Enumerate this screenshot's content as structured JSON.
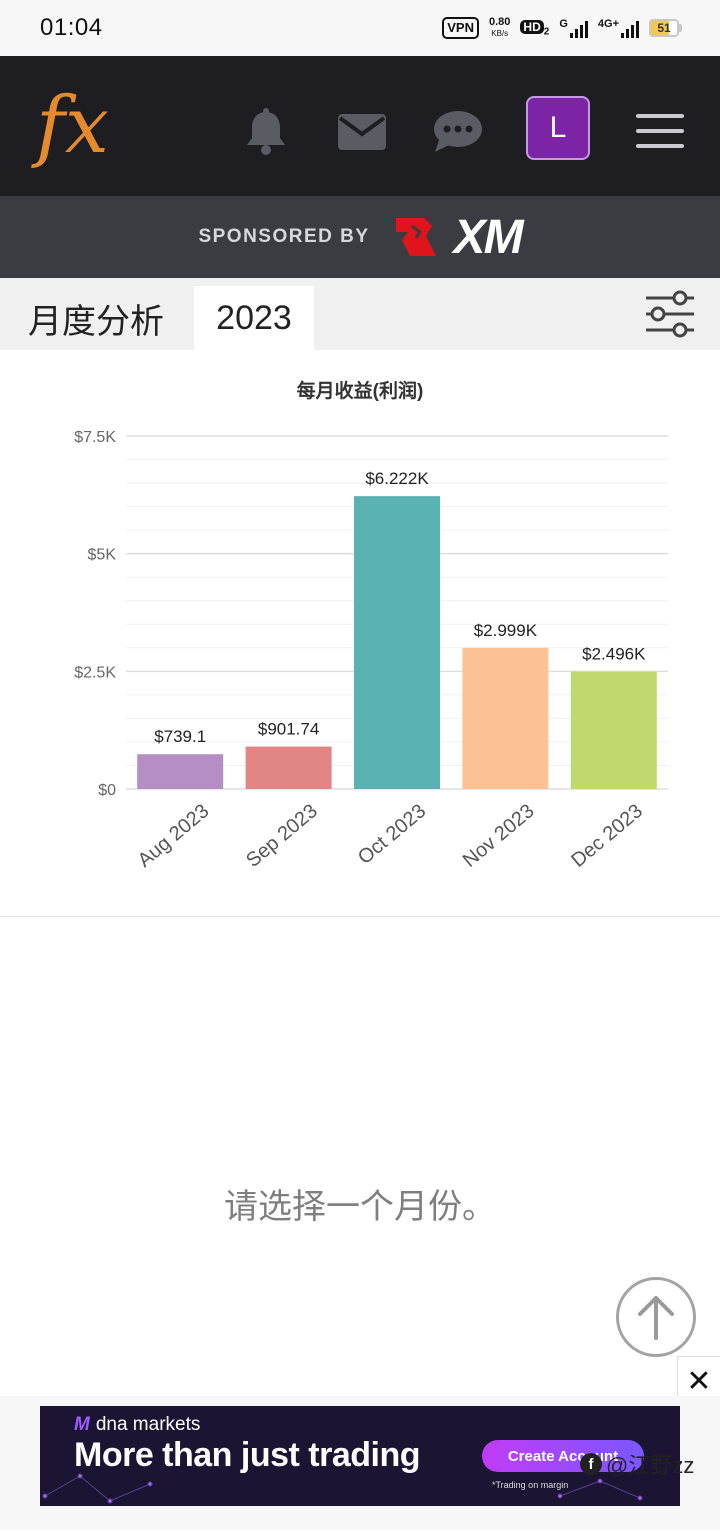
{
  "status_bar": {
    "time": "01:04",
    "vpn": "VPN",
    "net_speed": "0.80",
    "net_speed_unit": "KB/s",
    "hd": "HD",
    "hd_sub": "2",
    "network_g": "G",
    "network_4g": "4G+",
    "battery": "51"
  },
  "app": {
    "logo_text": "fx",
    "avatar_letter": "L",
    "icons": [
      "bell-icon",
      "mail-icon",
      "chat-icon",
      "menu-icon"
    ]
  },
  "sponsor": {
    "label": "SPONSORED BY",
    "brand": "XM"
  },
  "tabs": {
    "section_label": "月度分析",
    "year": "2023"
  },
  "chart_data": {
    "type": "bar",
    "title": "每月收益(利润)",
    "categories": [
      "Aug 2023",
      "Sep 2023",
      "Oct 2023",
      "Nov 2023",
      "Dec 2023"
    ],
    "values": [
      739.1,
      901.74,
      6222,
      2999,
      2496
    ],
    "data_labels": [
      "$739.1",
      "$901.74",
      "$6.222K",
      "$2.999K",
      "$2.496K"
    ],
    "colors": [
      "#b58fc4",
      "#e18585",
      "#5ab2b2",
      "#fcc194",
      "#c1d86e"
    ],
    "ylim": [
      0,
      7500
    ],
    "yticks": [
      0,
      2500,
      5000,
      7500
    ],
    "ytick_labels": [
      "$0",
      "$2.5K",
      "$5K",
      "$7.5K"
    ],
    "grid": true,
    "xlabel": "",
    "ylabel": ""
  },
  "panel": {
    "prompt": "请选择一个月份。"
  },
  "ad": {
    "close": "✕",
    "brand": "dna markets",
    "headline": "More than just trading",
    "cta": "Create Account",
    "fine_print": "*Trading on margin",
    "watermark": "@江野zz"
  }
}
